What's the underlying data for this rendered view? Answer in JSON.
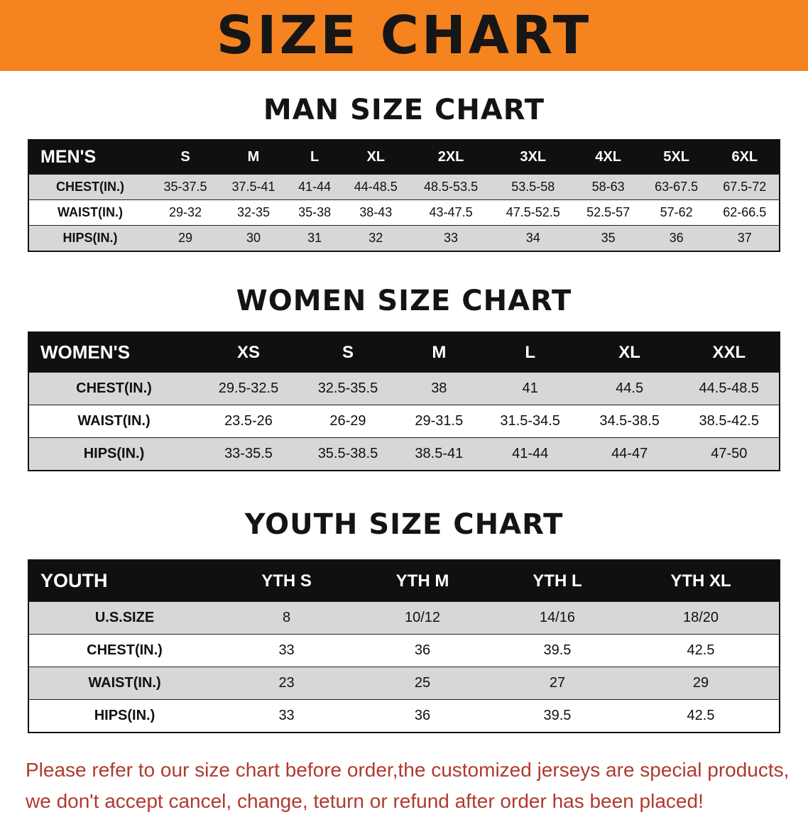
{
  "banner": {
    "title": "SIZE CHART"
  },
  "chart_data": [
    {
      "type": "table",
      "title": "MAN SIZE CHART",
      "header": [
        "MEN'S",
        "S",
        "M",
        "L",
        "XL",
        "2XL",
        "3XL",
        "4XL",
        "5XL",
        "6XL"
      ],
      "rows": [
        [
          "CHEST(IN.)",
          "35-37.5",
          "37.5-41",
          "41-44",
          "44-48.5",
          "48.5-53.5",
          "53.5-58",
          "58-63",
          "63-67.5",
          "67.5-72"
        ],
        [
          "WAIST(IN.)",
          "29-32",
          "32-35",
          "35-38",
          "38-43",
          "43-47.5",
          "47.5-52.5",
          "52.5-57",
          "57-62",
          "62-66.5"
        ],
        [
          "HIPS(IN.)",
          "29",
          "30",
          "31",
          "32",
          "33",
          "34",
          "35",
          "36",
          "37"
        ]
      ]
    },
    {
      "type": "table",
      "title": "WOMEN SIZE CHART",
      "header": [
        "WOMEN'S",
        "XS",
        "S",
        "M",
        "L",
        "XL",
        "XXL"
      ],
      "rows": [
        [
          "CHEST(IN.)",
          "29.5-32.5",
          "32.5-35.5",
          "38",
          "41",
          "44.5",
          "44.5-48.5"
        ],
        [
          "WAIST(IN.)",
          "23.5-26",
          "26-29",
          "29-31.5",
          "31.5-34.5",
          "34.5-38.5",
          "38.5-42.5"
        ],
        [
          "HIPS(IN.)",
          "33-35.5",
          "35.5-38.5",
          "38.5-41",
          "41-44",
          "44-47",
          "47-50"
        ]
      ]
    },
    {
      "type": "table",
      "title": "YOUTH SIZE CHART",
      "header": [
        "YOUTH",
        "YTH S",
        "YTH M",
        "YTH L",
        "YTH XL"
      ],
      "rows": [
        [
          "U.S.SIZE",
          "8",
          "10/12",
          "14/16",
          "18/20"
        ],
        [
          "CHEST(IN.)",
          "33",
          "36",
          "39.5",
          "42.5"
        ],
        [
          "WAIST(IN.)",
          "23",
          "25",
          "27",
          "29"
        ],
        [
          "HIPS(IN.)",
          "33",
          "36",
          "39.5",
          "42.5"
        ]
      ]
    }
  ],
  "disclaimer": {
    "line1": "Please refer to our size chart before order,the customized jerseys are special products,",
    "line2": "we don't accept cancel, change, teturn or refund after order has been placed!"
  },
  "colors": {
    "banner_bg": "#F5831F",
    "header_bg": "#101010",
    "row_alt": "#D7D7D7",
    "disclaimer_color": "#B03A2E"
  }
}
